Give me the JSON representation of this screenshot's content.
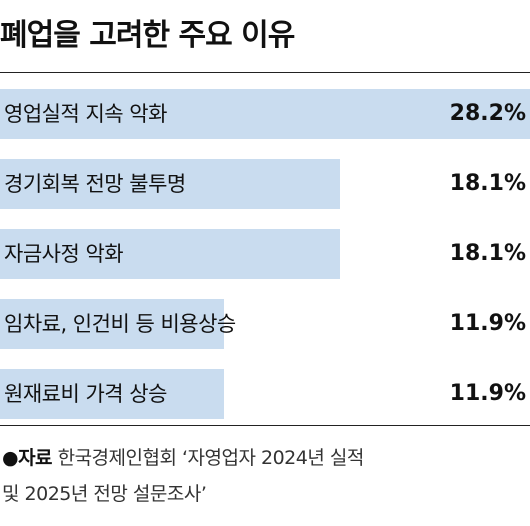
{
  "chart_data": {
    "type": "bar",
    "orientation": "horizontal",
    "title": "폐업을 고려한 주요 이유",
    "categories": [
      "영업실적 지속 악화",
      "경기회복 전망 불투명",
      "자금사정 악화",
      "임차료, 인건비 등 비용상승",
      "원재료비 가격 상승"
    ],
    "values": [
      28.2,
      18.1,
      18.1,
      11.9,
      11.9
    ],
    "value_labels": [
      "28.2%",
      "18.1%",
      "18.1%",
      "11.9%",
      "11.9%"
    ],
    "unit": "%",
    "xlim": [
      0,
      28.2
    ],
    "bar_color": "#c9dcef",
    "grid": false
  },
  "source": {
    "label": "●자료",
    "text_line1": "한국경제인협회 ‘자영업자 2024년 실적",
    "text_line2": "및 2025년 전망 설문조사’"
  }
}
